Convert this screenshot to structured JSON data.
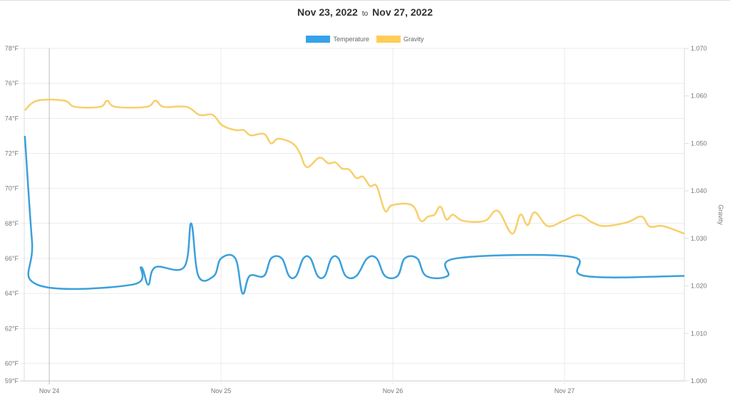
{
  "header": {
    "start": "Nov 23, 2022",
    "to": "to",
    "end": "Nov 27, 2022"
  },
  "chart_data": {
    "type": "line",
    "title": "Nov 23, 2022 to Nov 27, 2022",
    "legend_position": "top",
    "grid": true,
    "xlim": [
      "2022-11-23T20:30",
      "2022-11-27T16:45"
    ],
    "x_ticks": [
      {
        "t": "2022-11-24T00:00",
        "label": "Nov 24"
      },
      {
        "t": "2022-11-25T00:00",
        "label": "Nov 25"
      },
      {
        "t": "2022-11-26T00:00",
        "label": "Nov 26"
      },
      {
        "t": "2022-11-27T00:00",
        "label": "Nov 27"
      }
    ],
    "y_left": {
      "label": "",
      "ylim": [
        59,
        78
      ],
      "ticks": [
        59,
        60,
        62,
        64,
        66,
        68,
        70,
        72,
        74,
        76,
        78
      ],
      "tick_labels": [
        "59°F",
        "60°F",
        "62°F",
        "64°F",
        "66°F",
        "68°F",
        "70°F",
        "72°F",
        "74°F",
        "76°F",
        "78°F"
      ]
    },
    "y_right": {
      "label": "Gravity",
      "ylim": [
        1.0,
        1.07
      ],
      "ticks": [
        1.0,
        1.01,
        1.02,
        1.03,
        1.04,
        1.05,
        1.06,
        1.07
      ],
      "tick_labels": [
        "1.000",
        "1.010",
        "1.020",
        "1.030",
        "1.040",
        "1.050",
        "1.060",
        "1.070"
      ]
    },
    "series": [
      {
        "name": "Temperature",
        "axis": "left",
        "color": "#3aa0dc",
        "legend_color": "#36a2eb",
        "points": [
          [
            "2022-11-23T20:35",
            73
          ],
          [
            "2022-11-23T21:35",
            67
          ],
          [
            "2022-11-23T22:20",
            64.5
          ],
          [
            "2022-11-24T11:35",
            64.5
          ],
          [
            "2022-11-24T12:50",
            65.5
          ],
          [
            "2022-11-24T13:50",
            64.5
          ],
          [
            "2022-11-24T14:50",
            65.5
          ],
          [
            "2022-11-24T18:50",
            65.5
          ],
          [
            "2022-11-24T19:50",
            68
          ],
          [
            "2022-11-24T20:50",
            65
          ],
          [
            "2022-11-24T23:00",
            65
          ],
          [
            "2022-11-25T00:00",
            66
          ],
          [
            "2022-11-25T02:00",
            66
          ],
          [
            "2022-11-25T03:00",
            64
          ],
          [
            "2022-11-25T04:00",
            65
          ],
          [
            "2022-11-25T06:00",
            65
          ],
          [
            "2022-11-25T07:00",
            66
          ],
          [
            "2022-11-25T08:30",
            66
          ],
          [
            "2022-11-25T09:30",
            65
          ],
          [
            "2022-11-25T10:30",
            65
          ],
          [
            "2022-11-25T11:30",
            66
          ],
          [
            "2022-11-25T12:30",
            66
          ],
          [
            "2022-11-25T13:30",
            65
          ],
          [
            "2022-11-25T14:30",
            65
          ],
          [
            "2022-11-25T15:25",
            66
          ],
          [
            "2022-11-25T16:25",
            66
          ],
          [
            "2022-11-25T17:25",
            65
          ],
          [
            "2022-11-25T18:55",
            65
          ],
          [
            "2022-11-25T20:25",
            66
          ],
          [
            "2022-11-25T21:45",
            66
          ],
          [
            "2022-11-25T22:55",
            65
          ],
          [
            "2022-11-26T00:40",
            65
          ],
          [
            "2022-11-26T01:40",
            66
          ],
          [
            "2022-11-26T03:25",
            66
          ],
          [
            "2022-11-26T04:40",
            65
          ],
          [
            "2022-11-26T07:40",
            65
          ],
          [
            "2022-11-26T08:50",
            66
          ],
          [
            "2022-11-27T00:50",
            66.1
          ],
          [
            "2022-11-27T02:50",
            65
          ],
          [
            "2022-11-27T16:45",
            65
          ]
        ]
      },
      {
        "name": "Gravity",
        "axis": "right",
        "color": "#f7cf6b",
        "legend_color": "#ffcd56",
        "points": [
          [
            "2022-11-23T20:35",
            1.057
          ],
          [
            "2022-11-23T22:20",
            1.059
          ],
          [
            "2022-11-24T02:05",
            1.059
          ],
          [
            "2022-11-24T03:35",
            1.0577
          ],
          [
            "2022-11-24T07:05",
            1.0577
          ],
          [
            "2022-11-24T08:05",
            1.059
          ],
          [
            "2022-11-24T09:15",
            1.0577
          ],
          [
            "2022-11-24T13:35",
            1.0577
          ],
          [
            "2022-11-24T14:50",
            1.059
          ],
          [
            "2022-11-24T16:00",
            1.0577
          ],
          [
            "2022-11-24T19:10",
            1.0577
          ],
          [
            "2022-11-24T21:00",
            1.056
          ],
          [
            "2022-11-24T22:50",
            1.056
          ],
          [
            "2022-11-25T00:10",
            1.0538
          ],
          [
            "2022-11-25T02:00",
            1.0528
          ],
          [
            "2022-11-25T03:10",
            1.0528
          ],
          [
            "2022-11-25T04:10",
            1.0517
          ],
          [
            "2022-11-25T06:00",
            1.052
          ],
          [
            "2022-11-25T07:00",
            1.05
          ],
          [
            "2022-11-25T08:00",
            1.051
          ],
          [
            "2022-11-25T10:00",
            1.05
          ],
          [
            "2022-11-25T11:00",
            1.048
          ],
          [
            "2022-11-25T12:00",
            1.045
          ],
          [
            "2022-11-25T13:45",
            1.047
          ],
          [
            "2022-11-25T15:00",
            1.0458
          ],
          [
            "2022-11-25T16:00",
            1.046
          ],
          [
            "2022-11-25T16:55",
            1.0447
          ],
          [
            "2022-11-25T17:55",
            1.0445
          ],
          [
            "2022-11-25T18:55",
            1.0427
          ],
          [
            "2022-11-25T19:50",
            1.043
          ],
          [
            "2022-11-25T20:50",
            1.041
          ],
          [
            "2022-11-25T21:45",
            1.041
          ],
          [
            "2022-11-25T22:55",
            1.0358
          ],
          [
            "2022-11-25T23:55",
            1.037
          ],
          [
            "2022-11-26T02:40",
            1.037
          ],
          [
            "2022-11-26T03:55",
            1.0337
          ],
          [
            "2022-11-26T04:55",
            1.0346
          ],
          [
            "2022-11-26T05:50",
            1.035
          ],
          [
            "2022-11-26T06:40",
            1.0367
          ],
          [
            "2022-11-26T07:30",
            1.034
          ],
          [
            "2022-11-26T08:25",
            1.035
          ],
          [
            "2022-11-26T09:50",
            1.0337
          ],
          [
            "2022-11-26T12:50",
            1.0337
          ],
          [
            "2022-11-26T14:40",
            1.0358
          ],
          [
            "2022-11-26T16:40",
            1.031
          ],
          [
            "2022-11-26T17:50",
            1.035
          ],
          [
            "2022-11-26T18:50",
            1.0328
          ],
          [
            "2022-11-26T19:50",
            1.0355
          ],
          [
            "2022-11-26T21:40",
            1.0326
          ],
          [
            "2022-11-26T23:50",
            1.0337
          ],
          [
            "2022-11-27T02:00",
            1.0349
          ],
          [
            "2022-11-27T03:50",
            1.0334
          ],
          [
            "2022-11-27T05:35",
            1.0326
          ],
          [
            "2022-11-27T08:45",
            1.0334
          ],
          [
            "2022-11-27T10:45",
            1.0346
          ],
          [
            "2022-11-27T11:55",
            1.0325
          ],
          [
            "2022-11-27T13:45",
            1.0326
          ],
          [
            "2022-11-27T16:45",
            1.031
          ]
        ]
      }
    ]
  }
}
